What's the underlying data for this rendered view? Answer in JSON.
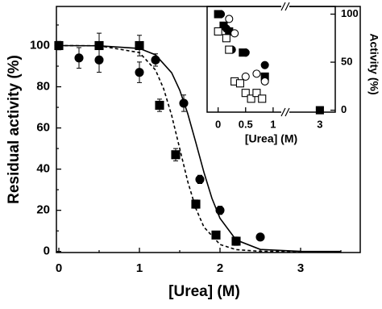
{
  "chart_data": [
    {
      "type": "scatter",
      "x_label": "[Urea] (M)",
      "y_label": "Residual activity (%)",
      "xlim": [
        -0.03,
        3.74
      ],
      "ylim": [
        -0.5,
        119
      ],
      "xticks": [
        0,
        1,
        2,
        3
      ],
      "yticks": [
        0,
        20,
        40,
        60,
        80,
        100
      ],
      "xminor": [
        0.5,
        1.5,
        2.5,
        3.5
      ],
      "yminor": [
        10,
        30,
        50,
        70,
        90,
        110
      ],
      "yaxis_side": "left",
      "series": [
        {
          "marker": "circle",
          "filled": true,
          "color": "#000000",
          "x": [
            0,
            0.25,
            0.5,
            1,
            1.2,
            1.55,
            1.75,
            2.0,
            2.2,
            2.5
          ],
          "values": [
            100,
            94,
            93,
            87,
            93,
            72,
            35,
            20,
            5,
            7
          ],
          "errors": [
            2,
            5,
            6,
            5,
            3,
            4,
            2,
            2,
            2,
            1
          ]
        },
        {
          "marker": "square",
          "filled": true,
          "color": "#000000",
          "x": [
            0,
            0.5,
            1,
            1.25,
            1.45,
            1.7,
            1.95,
            2.2
          ],
          "values": [
            100,
            100,
            100,
            71,
            47,
            23,
            8,
            5
          ],
          "errors": [
            2,
            6,
            5,
            3,
            3,
            2,
            1,
            1
          ]
        },
        {
          "marker": "none",
          "style": "solid",
          "color": "#000000",
          "x": [
            0,
            0.5,
            1,
            1.2,
            1.4,
            1.5,
            1.6,
            1.7,
            1.8,
            1.9,
            2.0,
            2.2,
            2.5,
            3,
            3.5
          ],
          "values": [
            100,
            99.9,
            98.6,
            95.5,
            86.8,
            78.4,
            66.9,
            52.9,
            38.5,
            25.8,
            16.1,
            5.6,
            1.0,
            0.05,
            0
          ]
        },
        {
          "marker": "none",
          "style": "dashed",
          "color": "#000000",
          "x": [
            0,
            0.5,
            1,
            1.2,
            1.3,
            1.4,
            1.5,
            1.6,
            1.7,
            1.8,
            2.0,
            2.2,
            2.5,
            3
          ],
          "values": [
            100,
            99.9,
            96.6,
            88.1,
            79.1,
            66.1,
            50,
            33.9,
            20.9,
            11.9,
            3.4,
            0.9,
            0.1,
            0
          ]
        }
      ]
    },
    {
      "type": "scatter",
      "x_label": "[Urea] (M)",
      "y_label": "Activity (%)",
      "xlim": [
        -0.2,
        3.28
      ],
      "xbreak": [
        1.25,
        2.4
      ],
      "ylim": [
        -2,
        108
      ],
      "xticks": [
        0,
        0.5,
        1,
        3
      ],
      "yticks": [
        0,
        50,
        100
      ],
      "yaxis_side": "right",
      "series": [
        {
          "marker": "square",
          "filled": true,
          "color": "#000000",
          "x": [
            0,
            0.1,
            0.2,
            0.45,
            0.85,
            3
          ],
          "values": [
            100,
            88,
            82,
            60,
            35,
            0
          ]
        },
        {
          "marker": "circle",
          "filled": true,
          "color": "#000000",
          "x": [
            0.05,
            0.15,
            0.25,
            0.5,
            0.85
          ],
          "values": [
            100,
            85,
            63,
            60,
            47
          ]
        },
        {
          "marker": "circle",
          "filled": false,
          "color": "#000000",
          "x": [
            0.2,
            0.3,
            0.5,
            0.7,
            0.85
          ],
          "values": [
            95,
            80,
            35,
            38,
            30
          ]
        },
        {
          "marker": "square",
          "filled": false,
          "color": "#000000",
          "x": [
            0,
            0.15,
            0.2,
            0.3,
            0.4,
            0.5,
            0.6,
            0.7,
            0.8
          ],
          "values": [
            82,
            75,
            63,
            30,
            28,
            18,
            12,
            18,
            12
          ]
        }
      ]
    }
  ]
}
